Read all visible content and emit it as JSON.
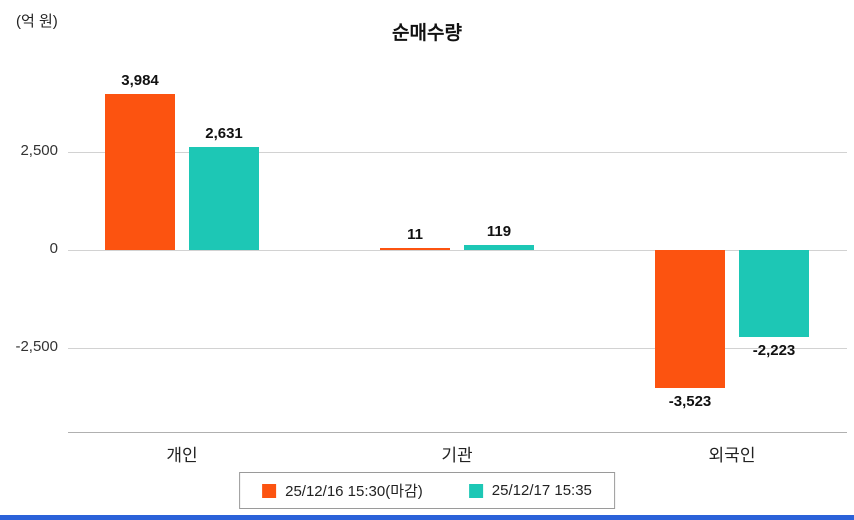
{
  "title": "순매수량",
  "unit_label": "(억 원)",
  "colors": {
    "series1": "#fc5310",
    "series2": "#1dc7b5",
    "grid": "#d2d2d2",
    "bottom_bar": "#2b62d9"
  },
  "chart_data": {
    "type": "bar",
    "title": "순매수량",
    "ylabel": "(억 원)",
    "categories": [
      "개인",
      "기관",
      "외국인"
    ],
    "series": [
      {
        "name": "25/12/16 15:30(마감)",
        "color": "#fc5310",
        "values": [
          3984,
          11,
          -3523
        ]
      },
      {
        "name": "25/12/17 15:35",
        "color": "#1dc7b5",
        "values": [
          2631,
          119,
          -2223
        ]
      }
    ],
    "value_labels": [
      [
        "3,984",
        "11",
        "-3,523"
      ],
      [
        "2,631",
        "119",
        "-2,223"
      ]
    ],
    "yticks": [
      2500,
      0,
      -2500
    ],
    "ytick_labels": [
      "2,500",
      "0",
      "-2,500"
    ],
    "ylim": [
      -4300,
      4800
    ],
    "grid": true,
    "legend_position": "bottom"
  },
  "legend": {
    "items": [
      {
        "label": "25/12/16 15:30(마감)",
        "color": "#fc5310"
      },
      {
        "label": "25/12/17 15:35",
        "color": "#1dc7b5"
      }
    ]
  }
}
